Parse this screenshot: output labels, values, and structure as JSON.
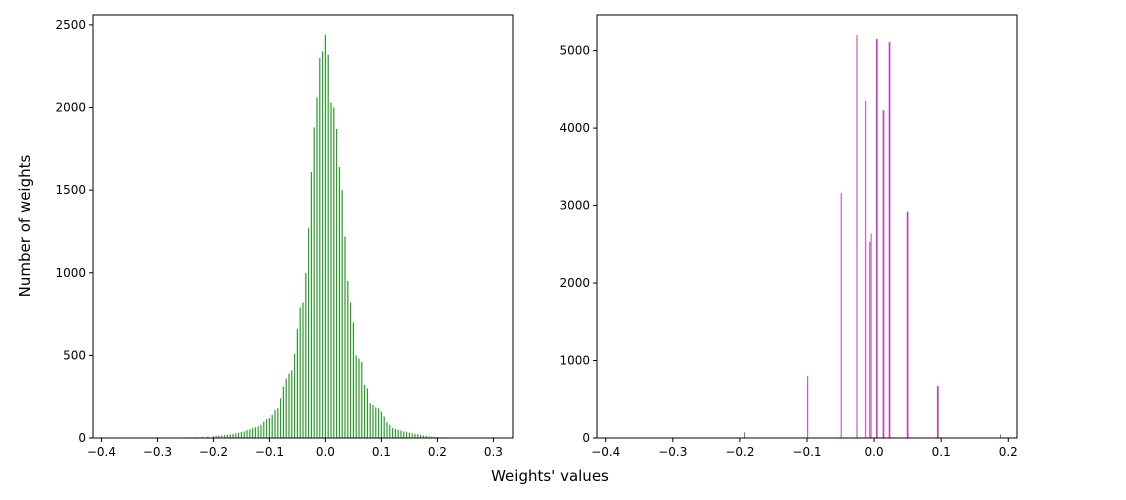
{
  "figure": {
    "ylabel": "Number of weights",
    "xlabel": "Weights' values"
  },
  "chart_data": [
    {
      "type": "bar",
      "title": "",
      "color": "#2ca02c",
      "xlim": [
        -0.415,
        0.335
      ],
      "ylim": [
        0,
        2560
      ],
      "xticks": [
        -0.4,
        -0.3,
        -0.2,
        -0.1,
        0.0,
        0.1,
        0.2,
        0.3
      ],
      "xtick_labels": [
        "−0.4",
        "−0.3",
        "−0.2",
        "−0.1",
        "0.0",
        "0.1",
        "0.2",
        "0.3"
      ],
      "yticks": [
        0,
        500,
        1000,
        1500,
        2000,
        2500
      ],
      "ytick_labels": [
        "0",
        "500",
        "1000",
        "1500",
        "2000",
        "2500"
      ],
      "bar_width": 0.0022,
      "x": [
        -0.26,
        -0.25,
        -0.24,
        -0.23,
        -0.22,
        -0.21,
        -0.2,
        -0.195,
        -0.19,
        -0.185,
        -0.18,
        -0.175,
        -0.17,
        -0.165,
        -0.16,
        -0.155,
        -0.15,
        -0.145,
        -0.14,
        -0.135,
        -0.13,
        -0.125,
        -0.12,
        -0.115,
        -0.11,
        -0.105,
        -0.1,
        -0.095,
        -0.09,
        -0.085,
        -0.08,
        -0.075,
        -0.07,
        -0.065,
        -0.06,
        -0.055,
        -0.05,
        -0.045,
        -0.04,
        -0.035,
        -0.03,
        -0.025,
        -0.02,
        -0.015,
        -0.01,
        -0.005,
        0.0,
        0.005,
        0.01,
        0.015,
        0.02,
        0.025,
        0.03,
        0.035,
        0.04,
        0.045,
        0.05,
        0.055,
        0.06,
        0.065,
        0.07,
        0.075,
        0.08,
        0.085,
        0.09,
        0.095,
        0.1,
        0.105,
        0.11,
        0.115,
        0.12,
        0.125,
        0.13,
        0.135,
        0.14,
        0.145,
        0.15,
        0.155,
        0.16,
        0.165,
        0.17,
        0.175,
        0.18,
        0.185,
        0.19,
        0.195,
        0.2,
        0.21,
        0.22,
        0.23,
        0.24,
        0.25
      ],
      "values": [
        3,
        3,
        4,
        5,
        6,
        8,
        10,
        12,
        13,
        15,
        17,
        19,
        22,
        25,
        28,
        32,
        36,
        40,
        48,
        52,
        60,
        65,
        70,
        80,
        100,
        115,
        120,
        140,
        170,
        180,
        240,
        310,
        360,
        390,
        410,
        510,
        660,
        790,
        820,
        1000,
        1270,
        1610,
        1880,
        2060,
        2300,
        2340,
        2440,
        2320,
        2030,
        2000,
        1870,
        1640,
        1500,
        1220,
        950,
        820,
        700,
        500,
        480,
        460,
        320,
        300,
        210,
        200,
        185,
        180,
        160,
        130,
        95,
        80,
        60,
        55,
        50,
        45,
        40,
        38,
        32,
        28,
        25,
        22,
        18,
        15,
        12,
        10,
        8,
        6,
        5,
        4,
        3,
        3,
        2,
        2
      ]
    },
    {
      "type": "bar",
      "title": "",
      "color": "#bf3fbf",
      "xlim": [
        -0.413,
        0.213
      ],
      "ylim": [
        0,
        5460
      ],
      "xticks": [
        -0.4,
        -0.3,
        -0.2,
        -0.1,
        0.0,
        0.1,
        0.2
      ],
      "xtick_labels": [
        "−0.4",
        "−0.3",
        "−0.2",
        "−0.1",
        "0.0",
        "0.1",
        "0.2"
      ],
      "yticks": [
        0,
        1000,
        2000,
        3000,
        4000,
        5000
      ],
      "ytick_labels": [
        "0",
        "1000",
        "2000",
        "3000",
        "4000",
        "5000"
      ],
      "bar_width": 0.0015,
      "x": [
        -0.193,
        -0.099,
        -0.049,
        -0.0255,
        -0.0125,
        -0.0065,
        -0.0045,
        0.0035,
        0.0045,
        0.0135,
        0.0145,
        0.0225,
        0.0235,
        0.0495,
        0.0505,
        0.0945,
        0.0955,
        0.1885
      ],
      "values": [
        75,
        800,
        3160,
        5200,
        4350,
        2530,
        2640,
        5150,
        5150,
        4230,
        4230,
        5110,
        5110,
        2920,
        2920,
        670,
        670,
        45
      ]
    }
  ]
}
